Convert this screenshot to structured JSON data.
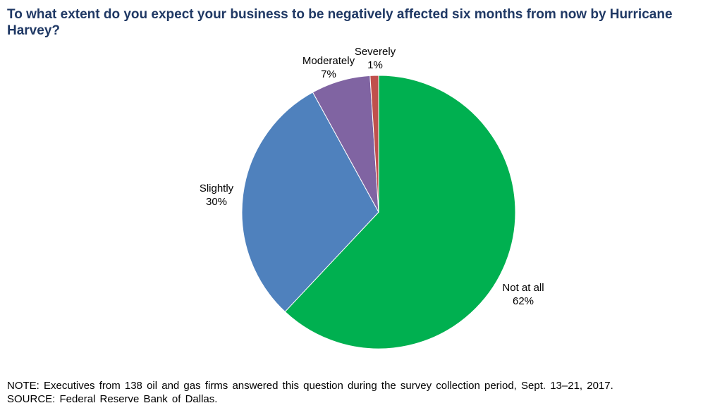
{
  "chart_data": {
    "type": "pie",
    "title": "To what extent do you expect your business to be negatively affected six months from now by Hurricane Harvey?",
    "categories": [
      "Not at all",
      "Slightly",
      "Moderately",
      "Severely"
    ],
    "values": [
      62,
      30,
      7,
      1
    ],
    "value_labels": [
      "62%",
      "30%",
      "7%",
      "1%"
    ],
    "colors": [
      "#00b050",
      "#4f81bd",
      "#8064a2",
      "#c0504d"
    ],
    "start": "12 o'clock, clockwise",
    "legend": "none (slice labels)"
  },
  "notes": {
    "note": "NOTE: Executives from 138 oil and gas firms answered this question during the survey collection period, Sept. 13–21, 2017.",
    "source": "SOURCE: Federal Reserve Bank of Dallas."
  }
}
